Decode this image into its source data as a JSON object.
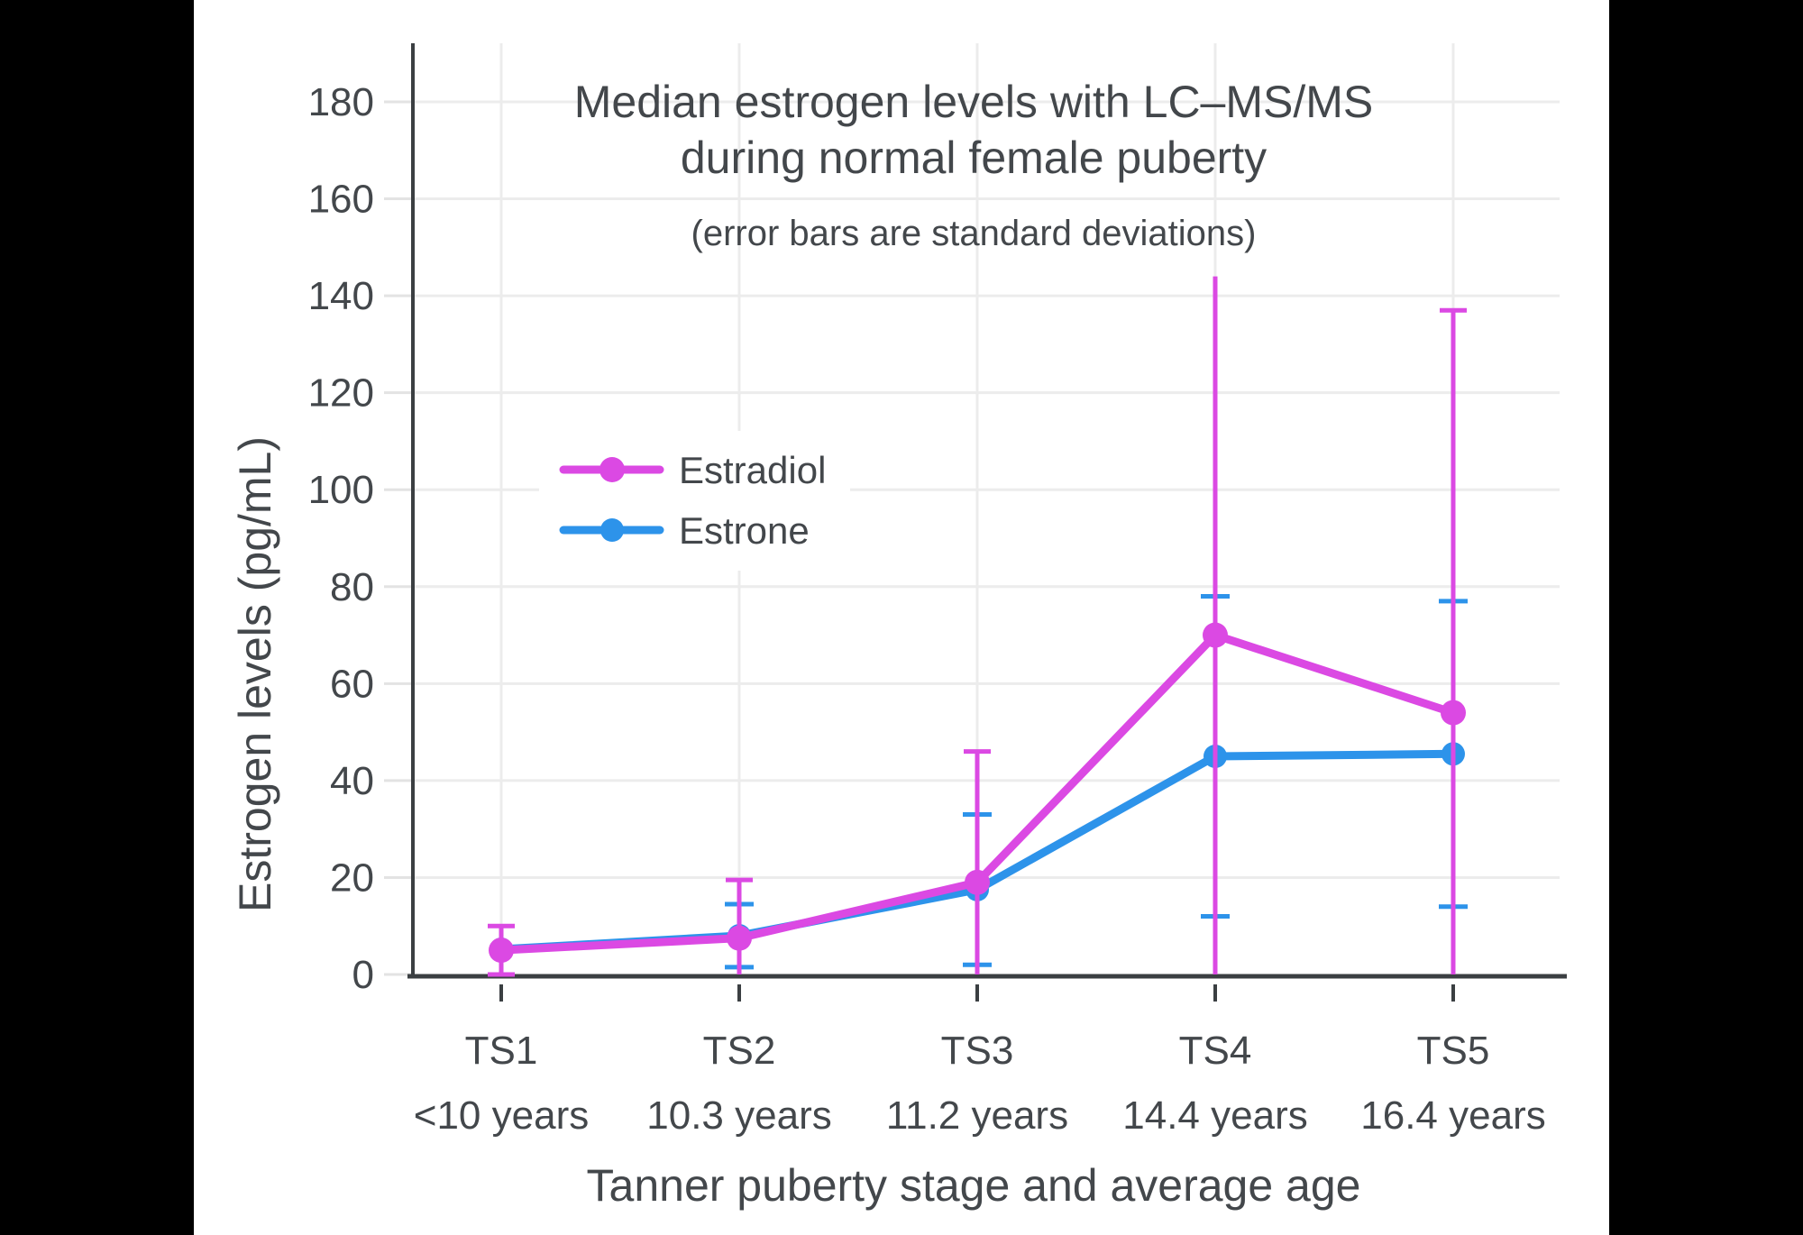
{
  "figure": {
    "background_color": "#FFFFFF",
    "letterbox_color": "#000000",
    "text_color": "#43474B",
    "axis_color": "#3B3F42",
    "gridline_color": "#ECECEC"
  },
  "header": {
    "title_line1": "Median estrogen levels with LC–MS/MS",
    "title_line2": "during normal female puberty",
    "subtitle": "(error bars are standard deviations)"
  },
  "axes": {
    "y_title": "Estrogen levels (pg/mL)",
    "x_title": "Tanner puberty stage and average age"
  },
  "chart_data": {
    "type": "line",
    "title": "Median estrogen levels with LC–MS/MS during normal female puberty",
    "subtitle": "(error bars are standard deviations)",
    "xlabel": "Tanner puberty stage and average age",
    "ylabel": "Estrogen levels (pg/mL)",
    "ylim": [
      0,
      190
    ],
    "ytick_start": 0,
    "ytick_end": 180,
    "ytick_step": 20,
    "grid": true,
    "legend_position": "upper-left-inside",
    "categories": [
      "TS1",
      "TS2",
      "TS3",
      "TS4",
      "TS5"
    ],
    "category_ages": [
      "<10 years",
      "10.3 years",
      "11.2 years",
      "14.4 years",
      "16.4 years"
    ],
    "series": [
      {
        "name": "Estrone",
        "color": "#2D93EA",
        "values": [
          5.2,
          8,
          17.5,
          45,
          45.5
        ],
        "error_low": [
          null,
          1.5,
          2,
          12,
          14
        ],
        "error_high": [
          null,
          14.5,
          33,
          78,
          77
        ],
        "cap_low": [
          false,
          true,
          true,
          true,
          true
        ],
        "cap_high": [
          false,
          true,
          true,
          true,
          true
        ]
      },
      {
        "name": "Estradiol",
        "color": "#DB49E3",
        "values": [
          5,
          7.5,
          19,
          70,
          54
        ],
        "error_low": [
          0,
          0,
          0,
          0,
          0
        ],
        "error_high": [
          10,
          19.5,
          46,
          144,
          137
        ],
        "cap_low": [
          true,
          false,
          false,
          false,
          false
        ],
        "cap_high": [
          true,
          true,
          true,
          false,
          true
        ]
      }
    ]
  }
}
